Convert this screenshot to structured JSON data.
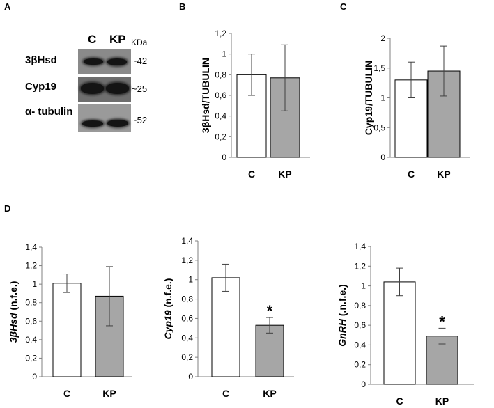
{
  "panels": {
    "A": {
      "letter": "A",
      "lane_labels": [
        "C",
        "KP"
      ],
      "unit_label": "KDa",
      "proteins": [
        {
          "name": "3βHsd",
          "mw": "~42"
        },
        {
          "name": "Cyp19",
          "mw": "~25"
        },
        {
          "name": "α- tubulin",
          "mw": "~52"
        }
      ]
    },
    "B": {
      "letter": "B"
    },
    "C": {
      "letter": "C"
    },
    "D": {
      "letter": "D"
    }
  },
  "chart_data": [
    {
      "id": "B",
      "type": "bar",
      "categories": [
        "C",
        "KP"
      ],
      "values": [
        0.8,
        0.77
      ],
      "errors": [
        0.2,
        0.32
      ],
      "ylabel": "3βHsd/TUBULIN",
      "ylim": [
        0,
        1.2
      ],
      "ticks": [
        "0",
        "0,2",
        "0,4",
        "0,6",
        "0,8",
        "1",
        "1,2"
      ],
      "tick_values": [
        0,
        0.2,
        0.4,
        0.6,
        0.8,
        1.0,
        1.2
      ],
      "colors": [
        "#ffffff",
        "#a6a6a6"
      ],
      "significance": [
        "",
        ""
      ]
    },
    {
      "id": "C",
      "type": "bar",
      "categories": [
        "C",
        "KP"
      ],
      "values": [
        1.3,
        1.45
      ],
      "errors": [
        0.3,
        0.42
      ],
      "ylabel": "Cyp19/TUBULIN",
      "ylim": [
        0,
        2
      ],
      "ticks": [
        "0",
        "0,5",
        "1",
        "1,5",
        "2"
      ],
      "tick_values": [
        0,
        0.5,
        1.0,
        1.5,
        2.0
      ],
      "colors": [
        "#ffffff",
        "#a6a6a6"
      ],
      "significance": [
        "",
        ""
      ]
    },
    {
      "id": "D1",
      "type": "bar",
      "categories": [
        "C",
        "KP"
      ],
      "values": [
        1.01,
        0.87
      ],
      "errors": [
        0.1,
        0.32
      ],
      "ylabel_gene": "3βHsd",
      "ylabel_unit": " (n.f.e.)",
      "ylim": [
        0,
        1.4
      ],
      "ticks": [
        "0",
        "0,2",
        "0,4",
        "0,6",
        "0,8",
        "1",
        "1,2",
        "1,4"
      ],
      "tick_values": [
        0,
        0.2,
        0.4,
        0.6,
        0.8,
        1.0,
        1.2,
        1.4
      ],
      "colors": [
        "#ffffff",
        "#a6a6a6"
      ],
      "significance": [
        "",
        ""
      ]
    },
    {
      "id": "D2",
      "type": "bar",
      "categories": [
        "C",
        "KP"
      ],
      "values": [
        1.02,
        0.53
      ],
      "errors": [
        0.14,
        0.08
      ],
      "ylabel_gene": "Cyp19",
      "ylabel_unit": " (n.f.e.)",
      "ylim": [
        0,
        1.4
      ],
      "ticks": [
        "0",
        "0,2",
        "0,4",
        "0,6",
        "0,8",
        "1",
        "1,2",
        "1,4"
      ],
      "tick_values": [
        0,
        0.2,
        0.4,
        0.6,
        0.8,
        1.0,
        1.2,
        1.4
      ],
      "colors": [
        "#ffffff",
        "#a6a6a6"
      ],
      "significance": [
        "",
        "*"
      ]
    },
    {
      "id": "D3",
      "type": "bar",
      "categories": [
        "C",
        "KP"
      ],
      "values": [
        1.04,
        0.49
      ],
      "errors": [
        0.14,
        0.08
      ],
      "ylabel_gene": "GnRH",
      "ylabel_unit": " (.n.f.e.)",
      "ylim": [
        0,
        1.4
      ],
      "ticks": [
        "0",
        "0,2",
        "0,4",
        "0,6",
        "0,8",
        "1",
        "1,2",
        "1,4"
      ],
      "tick_values": [
        0,
        0.2,
        0.4,
        0.6,
        0.8,
        1.0,
        1.2,
        1.4
      ],
      "colors": [
        "#ffffff",
        "#a6a6a6"
      ],
      "significance": [
        "",
        "*"
      ]
    }
  ]
}
